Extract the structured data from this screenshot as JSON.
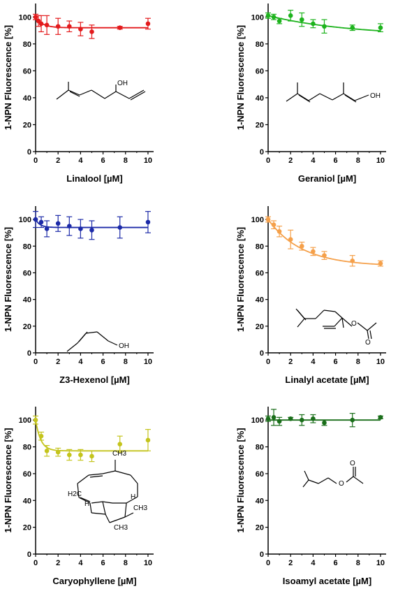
{
  "chart_data": [
    {
      "type": "scatter",
      "xlabel": "Linalool [µM]",
      "ylabel": "1-NPN Fluorescence [%]",
      "xlim": [
        0,
        10.5
      ],
      "ylim": [
        0,
        110
      ],
      "xticks": [
        "0",
        "2",
        "4",
        "6",
        "8",
        "10"
      ],
      "yticks": [
        "0",
        "20",
        "40",
        "60",
        "80",
        "100"
      ],
      "color": "#e31a1c",
      "points": [
        {
          "x": 0,
          "y": 100,
          "err": 2
        },
        {
          "x": 0.25,
          "y": 97,
          "err": 4
        },
        {
          "x": 0.5,
          "y": 95,
          "err": 6
        },
        {
          "x": 1,
          "y": 94,
          "err": 7
        },
        {
          "x": 2,
          "y": 93,
          "err": 6
        },
        {
          "x": 3,
          "y": 93,
          "err": 4
        },
        {
          "x": 4,
          "y": 91,
          "err": 5
        },
        {
          "x": 5,
          "y": 89,
          "err": 5
        },
        {
          "x": 7.5,
          "y": 92,
          "err": 1
        },
        {
          "x": 10,
          "y": 95,
          "err": 4
        }
      ],
      "fit": {
        "y0": 100,
        "plateau": 92,
        "k": 1.6
      },
      "structure": {
        "name": "linalool",
        "labels": [
          "OH"
        ]
      }
    },
    {
      "type": "scatter",
      "xlabel": "Geraniol [µM]",
      "ylabel": "1-NPN Fluorescence [%]",
      "xlim": [
        0,
        10.5
      ],
      "ylim": [
        0,
        110
      ],
      "xticks": [
        "0",
        "2",
        "4",
        "6",
        "8",
        "10"
      ],
      "yticks": [
        "0",
        "20",
        "40",
        "60",
        "80",
        "100"
      ],
      "color": "#1db31d",
      "points": [
        {
          "x": 0,
          "y": 101,
          "err": 2
        },
        {
          "x": 0.5,
          "y": 100,
          "err": 2
        },
        {
          "x": 1,
          "y": 97,
          "err": 2
        },
        {
          "x": 2,
          "y": 101,
          "err": 4
        },
        {
          "x": 3,
          "y": 98,
          "err": 5
        },
        {
          "x": 4,
          "y": 95,
          "err": 3
        },
        {
          "x": 5,
          "y": 93,
          "err": 5
        },
        {
          "x": 7.5,
          "y": 92,
          "err": 2
        },
        {
          "x": 10,
          "y": 92,
          "err": 3
        }
      ],
      "fit": {
        "y0": 101,
        "plateau": 86,
        "k": 0.14
      },
      "structure": {
        "name": "geraniol",
        "labels": [
          "OH"
        ]
      }
    },
    {
      "type": "scatter",
      "xlabel": "Z3-Hexenol [µM]",
      "ylabel": "1-NPN Fluorescence [%]",
      "xlim": [
        0,
        10.5
      ],
      "ylim": [
        0,
        110
      ],
      "xticks": [
        "0",
        "2",
        "4",
        "6",
        "8",
        "10"
      ],
      "yticks": [
        "0",
        "20",
        "40",
        "60",
        "80",
        "100"
      ],
      "color": "#1c2aa8",
      "points": [
        {
          "x": 0,
          "y": 100,
          "err": 6
        },
        {
          "x": 0.5,
          "y": 98,
          "err": 4
        },
        {
          "x": 1,
          "y": 93,
          "err": 6
        },
        {
          "x": 2,
          "y": 97,
          "err": 6
        },
        {
          "x": 3,
          "y": 95,
          "err": 7
        },
        {
          "x": 4,
          "y": 93,
          "err": 7
        },
        {
          "x": 5,
          "y": 92,
          "err": 7
        },
        {
          "x": 7.5,
          "y": 94,
          "err": 8
        },
        {
          "x": 10,
          "y": 98,
          "err": 8
        }
      ],
      "fit": {
        "y0": 100,
        "plateau": 94,
        "k": 2.5
      },
      "structure": {
        "name": "z3-hexenol",
        "labels": [
          "OH"
        ]
      }
    },
    {
      "type": "scatter",
      "xlabel": "Linalyl acetate [µM]",
      "ylabel": "1-NPN Fluorescence [%]",
      "xlim": [
        0,
        10.5
      ],
      "ylim": [
        0,
        110
      ],
      "xticks": [
        "0",
        "2",
        "4",
        "6",
        "8",
        "10"
      ],
      "yticks": [
        "0",
        "20",
        "40",
        "60",
        "80",
        "100"
      ],
      "color": "#f5a04a",
      "points": [
        {
          "x": 0,
          "y": 100,
          "err": 2
        },
        {
          "x": 0.5,
          "y": 96,
          "err": 3
        },
        {
          "x": 1,
          "y": 91,
          "err": 4
        },
        {
          "x": 2,
          "y": 85,
          "err": 7
        },
        {
          "x": 3,
          "y": 80,
          "err": 3
        },
        {
          "x": 4,
          "y": 76,
          "err": 3
        },
        {
          "x": 5,
          "y": 73,
          "err": 3
        },
        {
          "x": 7.5,
          "y": 69,
          "err": 4
        },
        {
          "x": 10,
          "y": 67,
          "err": 2
        }
      ],
      "fit": {
        "y0": 100,
        "plateau": 65,
        "k": 0.33
      },
      "structure": {
        "name": "linalyl-acetate",
        "labels": [
          "O",
          "O"
        ]
      }
    },
    {
      "type": "scatter",
      "xlabel": "Caryophyllene [µM]",
      "ylabel": "1-NPN Fluorescence [%]",
      "xlim": [
        0,
        10.5
      ],
      "ylim": [
        0,
        110
      ],
      "xticks": [
        "0",
        "2",
        "4",
        "6",
        "8",
        "10"
      ],
      "yticks": [
        "0",
        "20",
        "40",
        "60",
        "80",
        "100"
      ],
      "color": "#c4c41c",
      "points": [
        {
          "x": 0,
          "y": 100,
          "err": 3
        },
        {
          "x": 0.5,
          "y": 88,
          "err": 3
        },
        {
          "x": 1,
          "y": 77,
          "err": 4
        },
        {
          "x": 2,
          "y": 76,
          "err": 3
        },
        {
          "x": 3,
          "y": 74,
          "err": 4
        },
        {
          "x": 4,
          "y": 74,
          "err": 4
        },
        {
          "x": 5,
          "y": 73,
          "err": 4
        },
        {
          "x": 7.5,
          "y": 82,
          "err": 6
        },
        {
          "x": 10,
          "y": 85,
          "err": 8
        }
      ],
      "fit": {
        "y0": 100,
        "plateau": 77,
        "k": 2.2
      },
      "structure": {
        "name": "caryophyllene",
        "labels": [
          "CH3",
          "H2C",
          "H",
          "H",
          "CH3",
          "CH3"
        ]
      }
    },
    {
      "type": "scatter",
      "xlabel": "Isoamyl acetate [µM]",
      "ylabel": "1-NPN Fluorescence [%]",
      "xlim": [
        0,
        10.5
      ],
      "ylim": [
        0,
        110
      ],
      "xticks": [
        "0",
        "2",
        "4",
        "6",
        "8",
        "10"
      ],
      "yticks": [
        "0",
        "20",
        "40",
        "60",
        "80",
        "100"
      ],
      "color": "#1a6e1a",
      "points": [
        {
          "x": 0,
          "y": 101,
          "err": 2
        },
        {
          "x": 0.5,
          "y": 102,
          "err": 6
        },
        {
          "x": 1,
          "y": 99,
          "err": 3
        },
        {
          "x": 2,
          "y": 101,
          "err": 1
        },
        {
          "x": 3,
          "y": 100,
          "err": 4
        },
        {
          "x": 4,
          "y": 101,
          "err": 3
        },
        {
          "x": 5,
          "y": 98,
          "err": 2
        },
        {
          "x": 7.5,
          "y": 100,
          "err": 5
        },
        {
          "x": 10,
          "y": 102,
          "err": 1
        }
      ],
      "fit": {
        "y0": 100,
        "plateau": 100,
        "k": 1
      },
      "structure": {
        "name": "isoamyl-acetate",
        "labels": [
          "O",
          "O"
        ]
      }
    }
  ]
}
